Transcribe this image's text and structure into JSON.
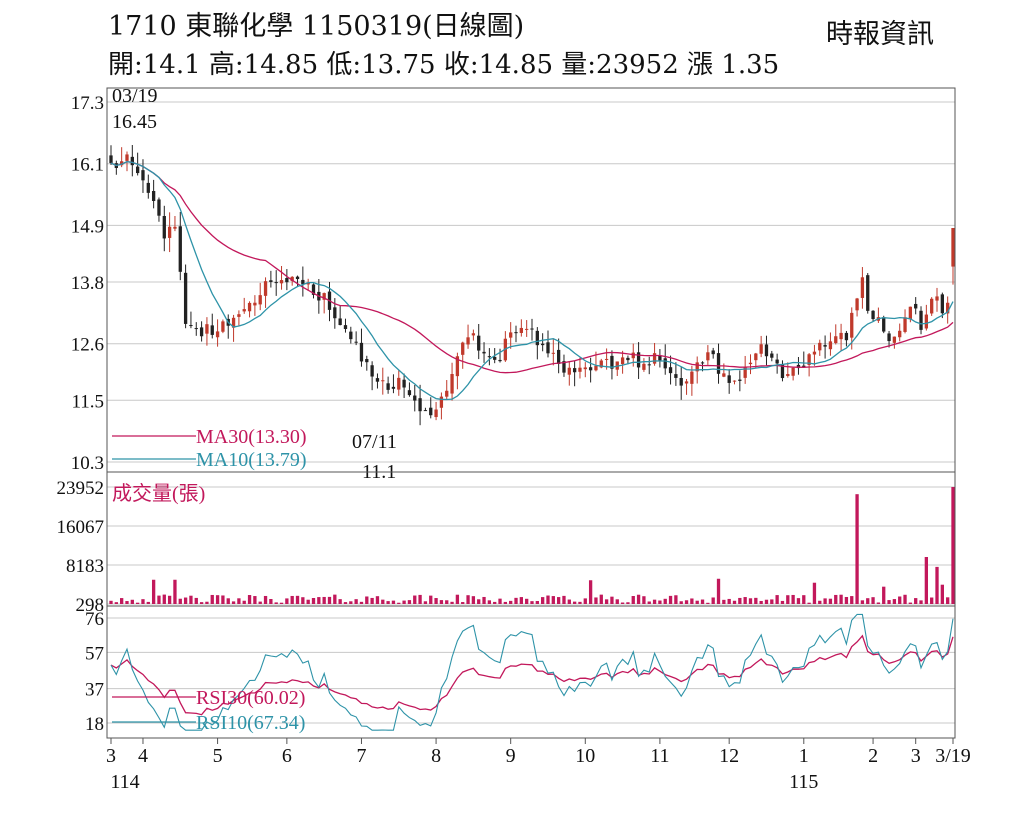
{
  "header": {
    "title": "1710  東聯化學 1150319(日線圖)",
    "source": "時報資訊",
    "quote_line": "開:14.1 高:14.85 低:13.75 收:14.85 量:23952 漲 1.35"
  },
  "colors": {
    "grid": "#c8c8c8",
    "frame": "#555555",
    "candle_up": "#c0392b",
    "candle_down": "#222222",
    "ma30": "#c2185b",
    "ma10": "#2e93a8",
    "volume": "#c2185b",
    "rsi30": "#c2185b",
    "rsi10": "#2e93a8"
  },
  "chart_data": [
    {
      "type": "candlestick",
      "panel": "price",
      "y_ticks": [
        "17.3",
        "16.1",
        "14.9",
        "13.8",
        "12.6",
        "11.5",
        "10.3"
      ],
      "ylim": [
        10.3,
        17.3
      ],
      "high_annotation": {
        "date": "03/19",
        "value": "16.45"
      },
      "low_annotation": {
        "date": "07/11",
        "value": "11.1"
      },
      "series": [
        {
          "name": "MA30(13.30)",
          "last_value": 13.3
        },
        {
          "name": "MA10(13.79)",
          "last_value": 13.79
        }
      ],
      "anchors": [
        [
          0,
          16.0
        ],
        [
          4,
          16.2
        ],
        [
          8,
          15.4
        ],
        [
          10,
          14.6
        ],
        [
          12,
          15.0
        ],
        [
          14,
          13.0
        ],
        [
          17,
          12.8
        ],
        [
          19,
          12.9
        ],
        [
          21,
          12.9
        ],
        [
          23,
          13.0
        ],
        [
          26,
          13.3
        ],
        [
          28,
          13.6
        ],
        [
          30,
          13.9
        ],
        [
          32,
          13.8
        ],
        [
          34,
          13.9
        ],
        [
          36,
          13.8
        ],
        [
          38,
          13.6
        ],
        [
          40,
          13.5
        ],
        [
          42,
          13.1
        ],
        [
          44,
          12.8
        ],
        [
          46,
          12.5
        ],
        [
          48,
          12.2
        ],
        [
          50,
          12.0
        ],
        [
          52,
          11.8
        ],
        [
          54,
          11.9
        ],
        [
          56,
          11.5
        ],
        [
          58,
          11.3
        ],
        [
          60,
          11.2
        ],
        [
          62,
          11.6
        ],
        [
          64,
          12.0
        ],
        [
          66,
          12.5
        ],
        [
          68,
          12.7
        ],
        [
          70,
          12.4
        ],
        [
          72,
          12.2
        ],
        [
          74,
          12.6
        ],
        [
          76,
          12.8
        ],
        [
          78,
          12.9
        ],
        [
          80,
          12.7
        ],
        [
          82,
          12.4
        ],
        [
          84,
          12.2
        ],
        [
          86,
          12.1
        ],
        [
          88,
          12.1
        ],
        [
          90,
          12.2
        ],
        [
          92,
          12.3
        ],
        [
          94,
          12.1
        ],
        [
          96,
          12.4
        ],
        [
          98,
          12.3
        ],
        [
          100,
          12.2
        ],
        [
          102,
          12.3
        ],
        [
          104,
          12.0
        ],
        [
          106,
          11.8
        ],
        [
          108,
          12.0
        ],
        [
          110,
          12.2
        ],
        [
          112,
          12.5
        ],
        [
          114,
          12.1
        ],
        [
          116,
          11.9
        ],
        [
          118,
          12.0
        ],
        [
          120,
          12.2
        ],
        [
          122,
          12.5
        ],
        [
          124,
          12.2
        ],
        [
          126,
          12.0
        ],
        [
          128,
          12.1
        ],
        [
          130,
          12.2
        ],
        [
          132,
          12.4
        ],
        [
          134,
          12.6
        ],
        [
          136,
          12.8
        ],
        [
          138,
          12.7
        ],
        [
          140,
          13.6
        ],
        [
          141,
          13.8
        ],
        [
          142,
          13.2
        ],
        [
          144,
          13.0
        ],
        [
          146,
          12.7
        ],
        [
          148,
          12.8
        ],
        [
          150,
          13.3
        ],
        [
          152,
          13.0
        ],
        [
          154,
          13.6
        ],
        [
          156,
          13.3
        ],
        [
          157,
          13.5
        ],
        [
          158,
          14.85
        ]
      ],
      "candle_count": 159
    },
    {
      "type": "bar",
      "panel": "volume",
      "label": "成交量(張)",
      "y_ticks": [
        "23952",
        "16067",
        "8183",
        "298"
      ],
      "ylim": [
        298,
        23952
      ],
      "spikes": [
        [
          8,
          5200
        ],
        [
          12,
          5200
        ],
        [
          90,
          5100
        ],
        [
          114,
          5400
        ],
        [
          132,
          4600
        ],
        [
          140,
          22500
        ],
        [
          145,
          3800
        ],
        [
          153,
          9800
        ],
        [
          155,
          7800
        ],
        [
          156,
          4200
        ],
        [
          158,
          23952
        ]
      ],
      "base_volume": 1300
    },
    {
      "type": "line",
      "panel": "rsi",
      "y_ticks": [
        "76",
        "57",
        "37",
        "18"
      ],
      "ylim": [
        18,
        76
      ],
      "series": [
        {
          "name": "RSI30(60.02)",
          "last_value": 60.02
        },
        {
          "name": "RSI10(67.34)",
          "last_value": 67.34
        }
      ]
    },
    {
      "type": "axis",
      "panel": "x_axis",
      "month_ticks": [
        {
          "label": "3",
          "index": 0
        },
        {
          "label": "4",
          "index": 6
        },
        {
          "label": "5",
          "index": 20
        },
        {
          "label": "6",
          "index": 33
        },
        {
          "label": "7",
          "index": 47
        },
        {
          "label": "8",
          "index": 61
        },
        {
          "label": "9",
          "index": 75
        },
        {
          "label": "10",
          "index": 89
        },
        {
          "label": "11",
          "index": 103
        },
        {
          "label": "12",
          "index": 116
        },
        {
          "label": "1",
          "index": 130
        },
        {
          "label": "2",
          "index": 143
        },
        {
          "label": "3",
          "index": 151
        },
        {
          "label": "3/19",
          "index": 158
        }
      ],
      "year_labels": [
        {
          "label": "114",
          "index": 0
        },
        {
          "label": "115",
          "index": 130
        }
      ]
    }
  ]
}
